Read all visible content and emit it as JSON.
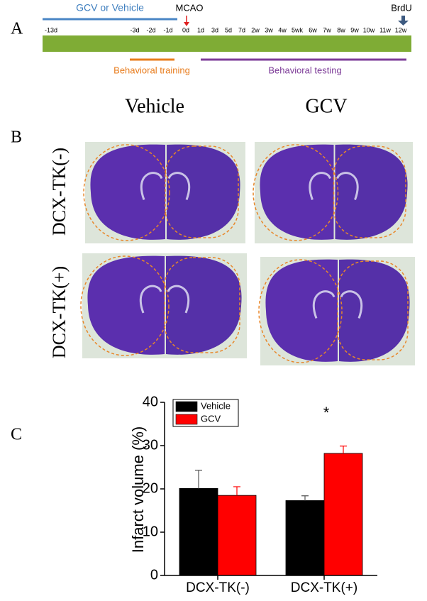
{
  "panel_a": {
    "label": "A",
    "treatment": "GCV or Vehicle",
    "event": "MCAO",
    "marker": "BrdU",
    "timepoints": [
      "-13d",
      "-3d",
      "-2d",
      "-1d",
      "0d",
      "1d",
      "3d",
      "5d",
      "7d",
      "2w",
      "3w",
      "4w",
      "5wk",
      "6w",
      "7w",
      "8w",
      "9w",
      "10w",
      "11w",
      "12w"
    ],
    "training": "Behavioral training",
    "testing": "Behavioral testing"
  },
  "panel_b": {
    "label": "B",
    "columns": [
      "Vehicle",
      "GCV"
    ],
    "rows": [
      "DCX-TK(-)",
      "DCX-TK(+)"
    ]
  },
  "chart_data": {
    "type": "bar",
    "panel_label": "C",
    "ylabel": "Infarct volume (%)",
    "categories": [
      "DCX-TK(-)",
      "DCX-TK(+)"
    ],
    "series": [
      {
        "name": "Vehicle",
        "color": "#000000",
        "values": [
          20.1,
          17.3
        ],
        "errors": [
          4.2,
          1.1
        ]
      },
      {
        "name": "GCV",
        "color": "#ff0000",
        "values": [
          18.5,
          28.2
        ],
        "errors": [
          2.0,
          1.7
        ]
      }
    ],
    "ylim": [
      0,
      40
    ],
    "yticks": [
      0,
      10,
      20,
      30,
      40
    ],
    "annotations": [
      "*"
    ]
  }
}
